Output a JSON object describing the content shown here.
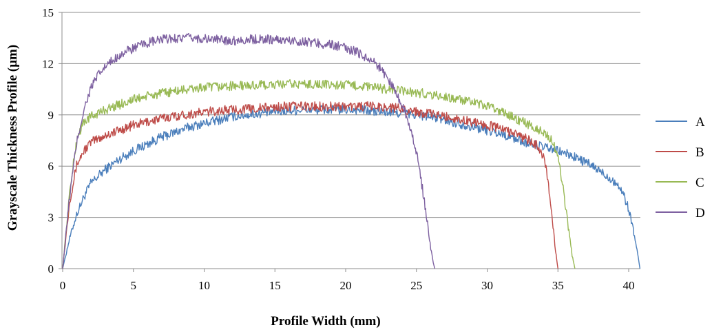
{
  "chart_data": {
    "type": "line",
    "xlabel": "Profile Width (mm)",
    "ylabel": "Grayscale Thickness Profile (µm)",
    "xlim": [
      0,
      41
    ],
    "ylim": [
      0,
      15
    ],
    "xticks": [
      "0",
      "5",
      "10",
      "15",
      "20",
      "25",
      "30",
      "35",
      "40"
    ],
    "yticks": [
      "0",
      "3",
      "6",
      "9",
      "12",
      "15"
    ],
    "grid": "horizontal",
    "legend_position": "right",
    "series": [
      {
        "name": "A",
        "color": "#4a7ebb",
        "x": [
          0,
          0.5,
          1,
          1.5,
          2,
          3,
          4,
          5,
          6,
          7,
          8,
          9,
          10,
          11,
          12,
          13,
          14,
          15,
          16,
          17,
          18,
          19,
          20,
          21,
          22,
          23,
          24,
          25,
          26,
          27,
          28,
          29,
          30,
          31,
          32,
          33,
          34,
          35,
          36,
          37,
          38,
          39,
          39.5,
          40,
          40.3,
          40.6,
          40.8
        ],
        "values": [
          0,
          1.8,
          3.2,
          4.2,
          5.0,
          5.8,
          6.4,
          6.9,
          7.3,
          7.7,
          8.0,
          8.3,
          8.5,
          8.7,
          8.9,
          9.0,
          9.1,
          9.2,
          9.25,
          9.3,
          9.3,
          9.3,
          9.3,
          9.3,
          9.2,
          9.15,
          9.1,
          9.0,
          8.9,
          8.7,
          8.5,
          8.3,
          8.1,
          7.9,
          7.6,
          7.3,
          7.1,
          6.9,
          6.6,
          6.2,
          5.7,
          5.1,
          4.6,
          3.5,
          2.4,
          1.0,
          0
        ]
      },
      {
        "name": "B",
        "color": "#be4b48",
        "x": [
          0,
          0.5,
          1,
          1.5,
          2,
          3,
          4,
          5,
          6,
          7,
          8,
          9,
          10,
          11,
          12,
          13,
          14,
          15,
          16,
          17,
          18,
          19,
          20,
          21,
          22,
          23,
          24,
          25,
          26,
          27,
          28,
          29,
          30,
          31,
          32,
          33,
          33.5,
          34,
          34.3,
          34.6,
          34.8,
          35
        ],
        "values": [
          0,
          4.0,
          6.1,
          6.9,
          7.4,
          7.8,
          8.1,
          8.4,
          8.6,
          8.8,
          8.95,
          9.05,
          9.15,
          9.25,
          9.3,
          9.35,
          9.4,
          9.45,
          9.5,
          9.5,
          9.5,
          9.5,
          9.5,
          9.5,
          9.5,
          9.45,
          9.35,
          9.2,
          9.05,
          8.9,
          8.75,
          8.6,
          8.4,
          8.2,
          7.9,
          7.5,
          7.2,
          6.6,
          5.0,
          3.0,
          1.2,
          0
        ]
      },
      {
        "name": "C",
        "color": "#98b954",
        "x": [
          0,
          0.5,
          1,
          1.5,
          2,
          3,
          4,
          5,
          6,
          7,
          8,
          9,
          10,
          11,
          12,
          13,
          14,
          15,
          16,
          17,
          18,
          19,
          20,
          21,
          22,
          23,
          24,
          25,
          26,
          27,
          28,
          29,
          30,
          31,
          32,
          33,
          34,
          34.5,
          35,
          35.4,
          35.7,
          36,
          36.2
        ],
        "values": [
          0,
          4.5,
          7.6,
          8.6,
          8.9,
          9.3,
          9.6,
          9.9,
          10.1,
          10.25,
          10.4,
          10.5,
          10.6,
          10.65,
          10.7,
          10.7,
          10.75,
          10.75,
          10.8,
          10.8,
          10.8,
          10.75,
          10.75,
          10.7,
          10.6,
          10.5,
          10.4,
          10.3,
          10.2,
          10.05,
          9.9,
          9.7,
          9.5,
          9.2,
          8.8,
          8.4,
          8.0,
          7.6,
          6.6,
          4.5,
          2.6,
          0.8,
          0
        ]
      },
      {
        "name": "D",
        "color": "#7d60a0",
        "x": [
          0,
          0.5,
          1,
          1.5,
          2,
          2.5,
          3,
          4,
          5,
          6,
          7,
          8,
          9,
          10,
          11,
          12,
          13,
          14,
          15,
          16,
          17,
          18,
          19,
          20,
          21,
          22,
          22.5,
          23,
          23.5,
          24,
          24.5,
          25,
          25.4,
          25.8,
          26,
          26.2,
          26.3
        ],
        "values": [
          0,
          4.3,
          7.4,
          9.3,
          10.6,
          11.3,
          11.8,
          12.5,
          12.9,
          13.2,
          13.4,
          13.5,
          13.5,
          13.45,
          13.4,
          13.35,
          13.4,
          13.45,
          13.4,
          13.35,
          13.3,
          13.2,
          13.1,
          12.9,
          12.6,
          12.1,
          11.7,
          11.1,
          10.4,
          9.6,
          8.5,
          6.8,
          4.8,
          2.6,
          1.2,
          0.3,
          0
        ]
      }
    ]
  }
}
